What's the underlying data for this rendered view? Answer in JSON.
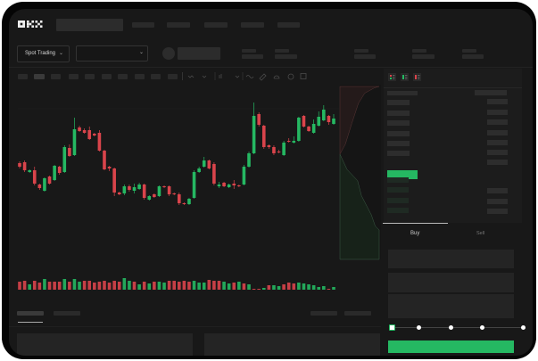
{
  "header": {
    "logo": "OKX"
  },
  "market_bar": {
    "trading_mode": "Spot Trading",
    "chevron_icon": "chevron-down-icon"
  },
  "order_book": {
    "view_icons": [
      "order-book-both-icon",
      "order-book-bids-icon",
      "order-book-asks-icon"
    ]
  },
  "trade_panel": {
    "tabs": [
      {
        "label": "Buy",
        "active": true
      },
      {
        "label": "Sell",
        "active": false
      }
    ],
    "slider_percent": 0,
    "submit_color": "#25b862"
  },
  "colors": {
    "up": "#25b862",
    "down": "#d9444b",
    "background": "#181818"
  },
  "chart_data": {
    "type": "candlestick",
    "fields": [
      "open",
      "high",
      "low",
      "close"
    ],
    "candles": [
      [
        117,
        119,
        111,
        113
      ],
      [
        118,
        120,
        107,
        109
      ],
      [
        107,
        110,
        106,
        109
      ],
      [
        109,
        113,
        92,
        94
      ],
      [
        93,
        94,
        87,
        89
      ],
      [
        86,
        101,
        85,
        100
      ],
      [
        102,
        103,
        93,
        94
      ],
      [
        98,
        115,
        97,
        114
      ],
      [
        113,
        114,
        104,
        106
      ],
      [
        107,
        137,
        106,
        135
      ],
      [
        134,
        138,
        124,
        125
      ],
      [
        126,
        168,
        125,
        155
      ],
      [
        157,
        159,
        152,
        153
      ],
      [
        154,
        156,
        150,
        151
      ],
      [
        154,
        158,
        143,
        144
      ],
      [
        150,
        151,
        147,
        148
      ],
      [
        151,
        154,
        130,
        131
      ],
      [
        131,
        132,
        109,
        110
      ],
      [
        113,
        114,
        108,
        111
      ],
      [
        111,
        112,
        80,
        84
      ],
      [
        84,
        85,
        81,
        82
      ],
      [
        83,
        93,
        81,
        91
      ],
      [
        91,
        93,
        85,
        87
      ],
      [
        86,
        94,
        83,
        90
      ],
      [
        88,
        95,
        87,
        93
      ],
      [
        93,
        94,
        76,
        78
      ],
      [
        76,
        81,
        75,
        80
      ],
      [
        82,
        83,
        78,
        79
      ],
      [
        80,
        92,
        79,
        91
      ],
      [
        91,
        92,
        89,
        90
      ],
      [
        91,
        92,
        80,
        82
      ],
      [
        83,
        84,
        81,
        82
      ],
      [
        82,
        84,
        70,
        72
      ],
      [
        72,
        73,
        70,
        71
      ],
      [
        71,
        78,
        70,
        77
      ],
      [
        78,
        109,
        77,
        107
      ],
      [
        107,
        113,
        106,
        111
      ],
      [
        113,
        124,
        112,
        120
      ],
      [
        120,
        121,
        110,
        111
      ],
      [
        116,
        118,
        92,
        94
      ],
      [
        91,
        96,
        89,
        93
      ],
      [
        95,
        96,
        90,
        91
      ],
      [
        90,
        94,
        89,
        93
      ],
      [
        94,
        98,
        88,
        92
      ],
      [
        92,
        93,
        90,
        91
      ],
      [
        93,
        115,
        92,
        113
      ],
      [
        113,
        130,
        112,
        128
      ],
      [
        128,
        185,
        127,
        170
      ],
      [
        172,
        174,
        158,
        160
      ],
      [
        159,
        160,
        133,
        135
      ],
      [
        137,
        138,
        133,
        135
      ],
      [
        135,
        137,
        126,
        128
      ],
      [
        130,
        132,
        128,
        129
      ],
      [
        126,
        142,
        125,
        140
      ],
      [
        142,
        145,
        140,
        141
      ],
      [
        140,
        147,
        139,
        142
      ],
      [
        142,
        169,
        141,
        168
      ],
      [
        170,
        171,
        157,
        158
      ],
      [
        158,
        159,
        152,
        153
      ],
      [
        151,
        166,
        150,
        161
      ],
      [
        159,
        175,
        158,
        169
      ],
      [
        165,
        182,
        164,
        177
      ],
      [
        170,
        171,
        160,
        163
      ],
      [
        161,
        172,
        160,
        167
      ]
    ],
    "volume": [
      9,
      10,
      6,
      10,
      8,
      12,
      9,
      9,
      9,
      12,
      9,
      12,
      9,
      10,
      10,
      8,
      9,
      10,
      8,
      10,
      9,
      13,
      10,
      9,
      6,
      9,
      7,
      9,
      9,
      8,
      10,
      10,
      9,
      10,
      9,
      10,
      8,
      8,
      11,
      10,
      10,
      9,
      7,
      8,
      9,
      7,
      6,
      1,
      1,
      2,
      5,
      5,
      4,
      6,
      8,
      7,
      8,
      7,
      6,
      5,
      3,
      4,
      1,
      3
    ],
    "volume_up": [
      0,
      0,
      1,
      0,
      0,
      1,
      0,
      0,
      0,
      1,
      0,
      1,
      1,
      0,
      0,
      0,
      0,
      0,
      0,
      0,
      0,
      1,
      1,
      0,
      1,
      0,
      1,
      0,
      1,
      1,
      0,
      0,
      0,
      0,
      0,
      1,
      1,
      1,
      0,
      0,
      0,
      1,
      1,
      0,
      1,
      0,
      1,
      0,
      0,
      1,
      0,
      1,
      1,
      0,
      0,
      0,
      1,
      1,
      1,
      1,
      1,
      1,
      0,
      1
    ],
    "depth_asks": [
      [
        0,
        0
      ],
      [
        0.15,
        0.14
      ],
      [
        0.45,
        0.3
      ],
      [
        0.75,
        0.47
      ],
      [
        0.9,
        0.63
      ],
      [
        0.98,
        0.88
      ],
      [
        1,
        1
      ]
    ],
    "depth_bids": [
      [
        0,
        0
      ],
      [
        0.2,
        0.18
      ],
      [
        0.35,
        0.45
      ],
      [
        0.55,
        0.55
      ],
      [
        0.8,
        0.8
      ],
      [
        0.95,
        0.9
      ],
      [
        1,
        1
      ]
    ]
  }
}
